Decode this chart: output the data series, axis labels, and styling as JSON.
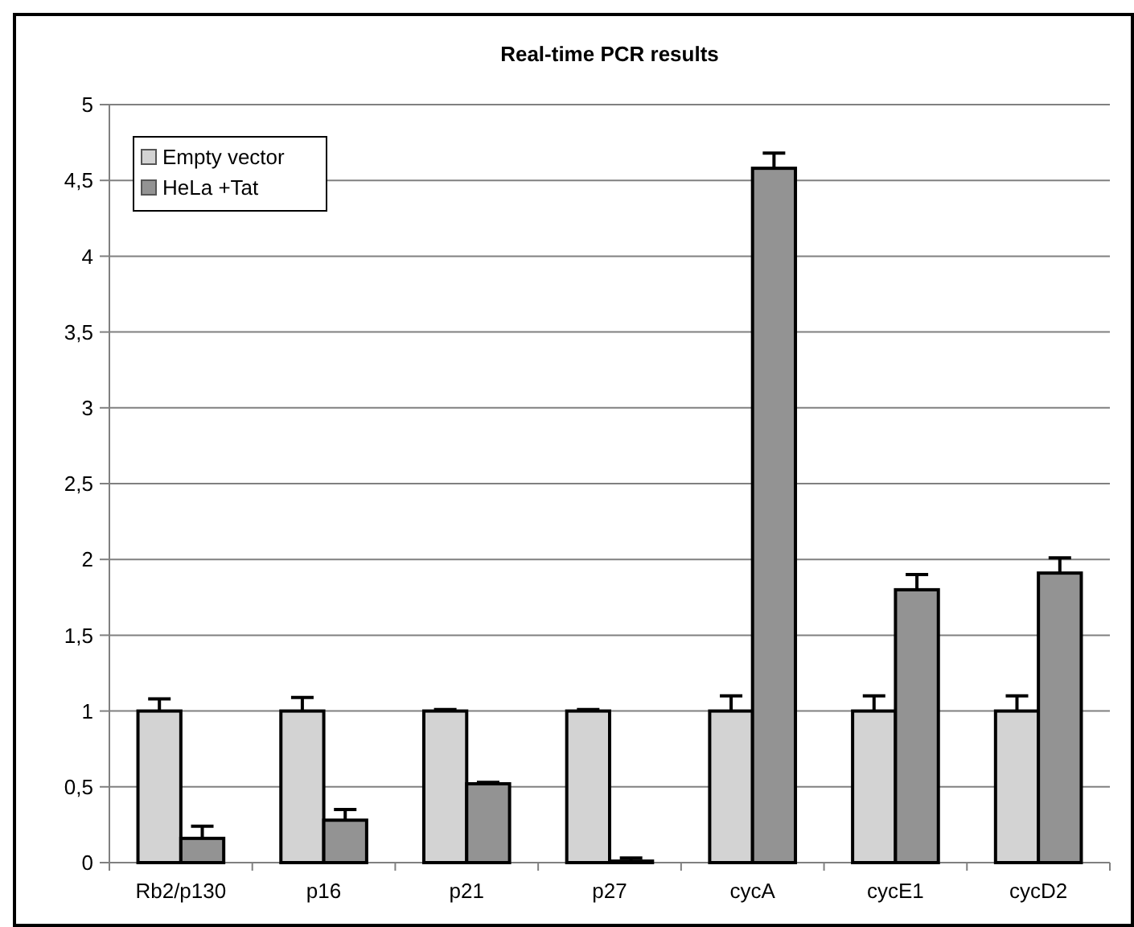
{
  "chart_data": {
    "type": "bar",
    "title": "Real-time PCR results",
    "categories": [
      "Rb2/p130",
      "p16",
      "p21",
      "p27",
      "cycA",
      "cycE1",
      "cycD2"
    ],
    "series": [
      {
        "name": "Empty vector",
        "color": "#d3d3d3",
        "values": [
          1,
          1,
          1,
          1,
          1,
          1,
          1
        ],
        "errors": [
          [
            1,
            1.08
          ],
          [
            1,
            1.09
          ],
          [
            1,
            1.01
          ],
          [
            1,
            1.01
          ],
          [
            1,
            1.1
          ],
          [
            1,
            1.1
          ],
          [
            1,
            1.1
          ]
        ]
      },
      {
        "name": "HeLa +Tat",
        "color": "#939393",
        "values": [
          0.16,
          0.28,
          0.52,
          0.01,
          4.58,
          1.8,
          1.91
        ],
        "errors": [
          [
            0.16,
            0.24
          ],
          [
            0.28,
            0.35
          ],
          [
            0.52,
            0.53
          ],
          [
            0.01,
            0.03
          ],
          [
            4.58,
            4.68
          ],
          [
            1.8,
            1.9
          ],
          [
            1.91,
            2.01
          ]
        ]
      }
    ],
    "ylim": [
      0,
      5
    ],
    "yticks": [
      0,
      {
        "value": 0.5,
        "label": "0,5"
      },
      1,
      {
        "value": 1.5,
        "label": "1,5"
      },
      2,
      {
        "value": 2.5,
        "label": "2,5"
      },
      3,
      {
        "value": 3.5,
        "label": "3,5"
      },
      4,
      {
        "value": 4.5,
        "label": "4,5"
      },
      5
    ],
    "grid": "y",
    "legend": "top left"
  }
}
